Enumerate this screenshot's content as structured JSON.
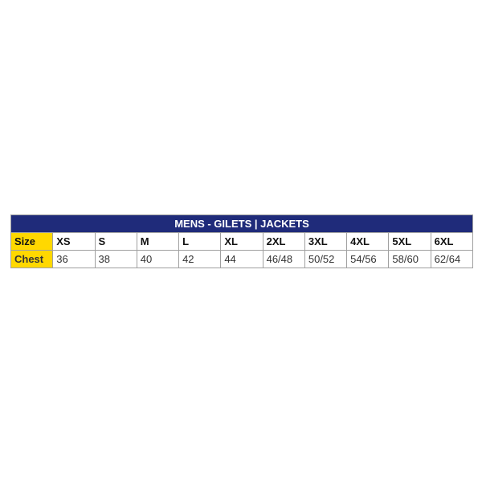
{
  "title": "MENS - GILETS | JACKETS",
  "colors": {
    "header_bg": "#1f2b7a",
    "label_bg": "#ffd800"
  },
  "rows": [
    {
      "label": "Size",
      "values": [
        "XS",
        "S",
        "M",
        "L",
        "XL",
        "2XL",
        "3XL",
        "4XL",
        "5XL",
        "6XL"
      ]
    },
    {
      "label": "Chest",
      "values": [
        "36",
        "38",
        "40",
        "42",
        "44",
        "46/48",
        "50/52",
        "54/56",
        "58/60",
        "62/64"
      ]
    }
  ]
}
